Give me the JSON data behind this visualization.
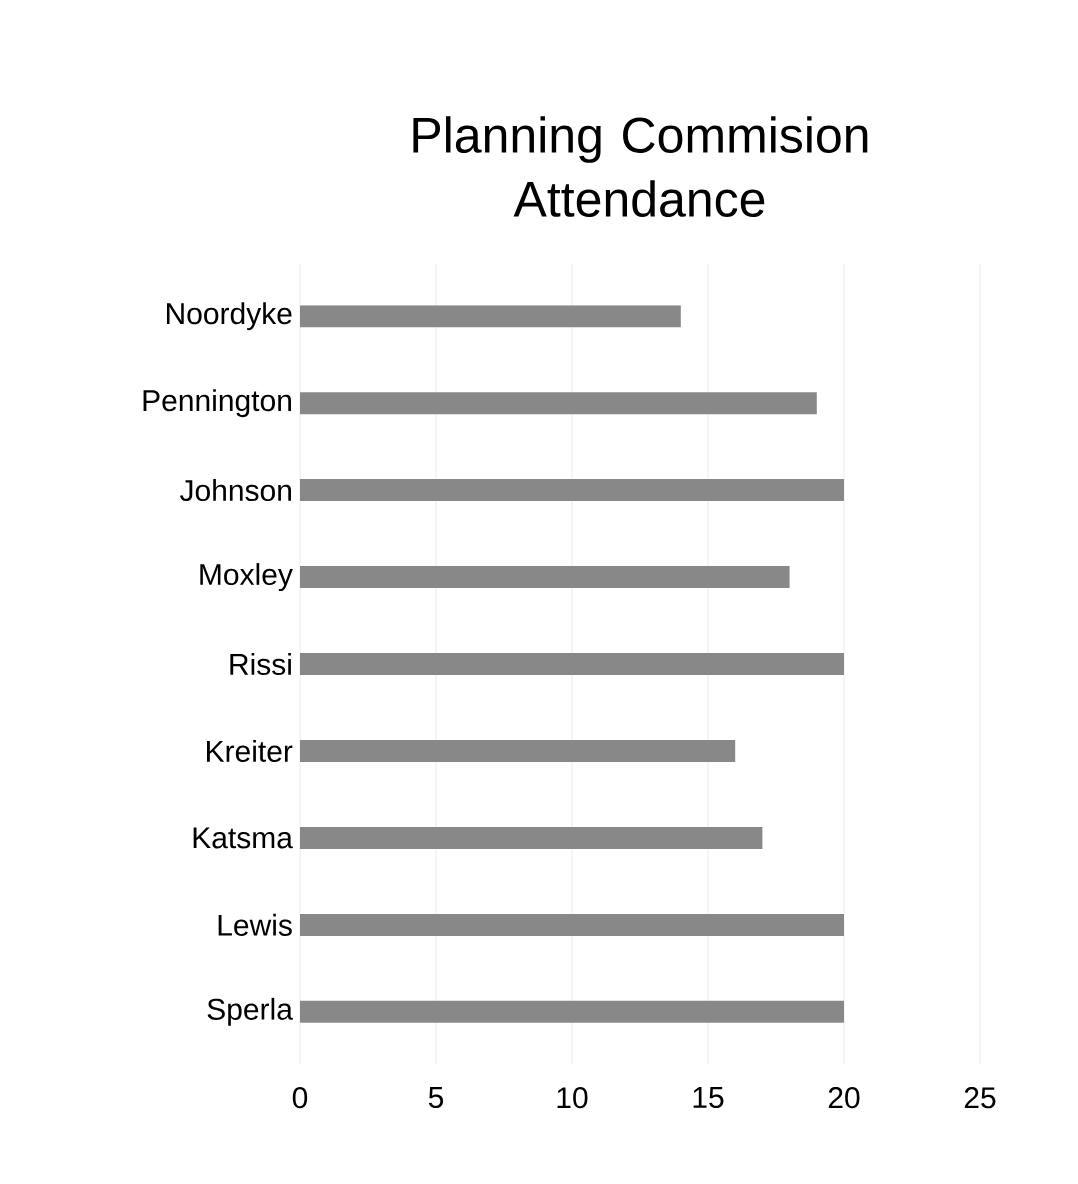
{
  "chart_data": {
    "type": "bar",
    "orientation": "horizontal",
    "title": "Planning Commision Attendance",
    "categories": [
      "Noordyke",
      "Pennington",
      "Johnson",
      "Moxley",
      "Rissi",
      "Kreiter",
      "Katsma",
      "Lewis",
      "Sperla"
    ],
    "values": [
      14,
      19,
      20,
      18,
      20,
      16,
      17,
      20,
      20
    ],
    "color": "#888888",
    "xlim": [
      0,
      25
    ],
    "xticks": [
      0,
      5,
      10,
      15,
      20,
      25
    ],
    "grid": "x"
  }
}
